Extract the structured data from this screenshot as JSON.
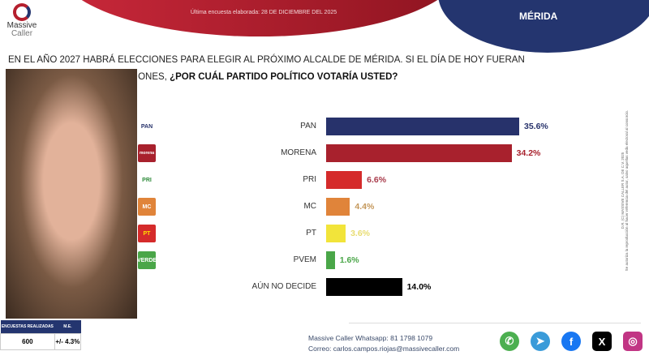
{
  "header": {
    "date_text": "Última encuesta elaborada: 28 DE DICIEMBRE DEL 2025",
    "city": "MÉRIDA",
    "logo_line1": "Massive",
    "logo_line2": "Caller"
  },
  "question": {
    "line1": "EN EL AÑO 2027 HABRÁ ELECCIONES PARA ELEGIR AL PRÓXIMO ALCALDE DE MÉRIDA. SI EL DÍA DE HOY FUERAN",
    "line2_plain": "AS ELECCIONES,",
    "line2_bold": "¿POR CUÁL PARTIDO POLÍTICO VOTARÍA USTED?"
  },
  "chart_data": {
    "type": "bar",
    "orientation": "horizontal",
    "categories": [
      "PAN",
      "MORENA",
      "PRI",
      "MC",
      "PT",
      "PVEM",
      "AÚN NO DECIDE"
    ],
    "values": [
      35.6,
      34.2,
      6.6,
      4.4,
      3.6,
      1.6,
      14.0
    ],
    "labels": [
      "35.6%",
      "34.2%",
      "6.6%",
      "4.4%",
      "3.6%",
      "1.6%",
      "14.0%"
    ],
    "colors": [
      "#27326b",
      "#a8212d",
      "#d52b2b",
      "#e0843a",
      "#f2e43a",
      "#4aa648",
      "#000000"
    ],
    "label_colors": [
      "#27326b",
      "#a8212d",
      "#a83a4a",
      "#c4975a",
      "#e8dc70",
      "#4aa648",
      "#000000"
    ],
    "logos": [
      "PAN",
      "morena",
      "PRI",
      "MC",
      "PT",
      "VERDE"
    ]
  },
  "stats": {
    "col1": "ENCUESTAS REALIZADAS",
    "col2": "M.E.",
    "val1": "600",
    "val2": "+/- 4.3%"
  },
  "contact": {
    "whatsapp": "Massive Caller Whatsapp: 81 1798 1079",
    "email": "Correo: carlos.campos.riojas@massivecaller.com"
  },
  "social": [
    {
      "icon": "whatsapp-icon",
      "color": "#4caf50"
    },
    {
      "icon": "telegram-icon",
      "color": "#3a9bd9"
    },
    {
      "icon": "facebook-icon",
      "color": "#1877f2"
    },
    {
      "icon": "x-icon",
      "color": "#000000"
    },
    {
      "icon": "instagram-icon",
      "color": "#c13584"
    }
  ],
  "legal": {
    "line1": "D.R. (C) MASSIVE CALLER S.A. DE C.V. 2025",
    "line2": "Se autoriza la reproducción al hacer referencia del autor, salvo aquellas veda electoral al consorcio."
  }
}
